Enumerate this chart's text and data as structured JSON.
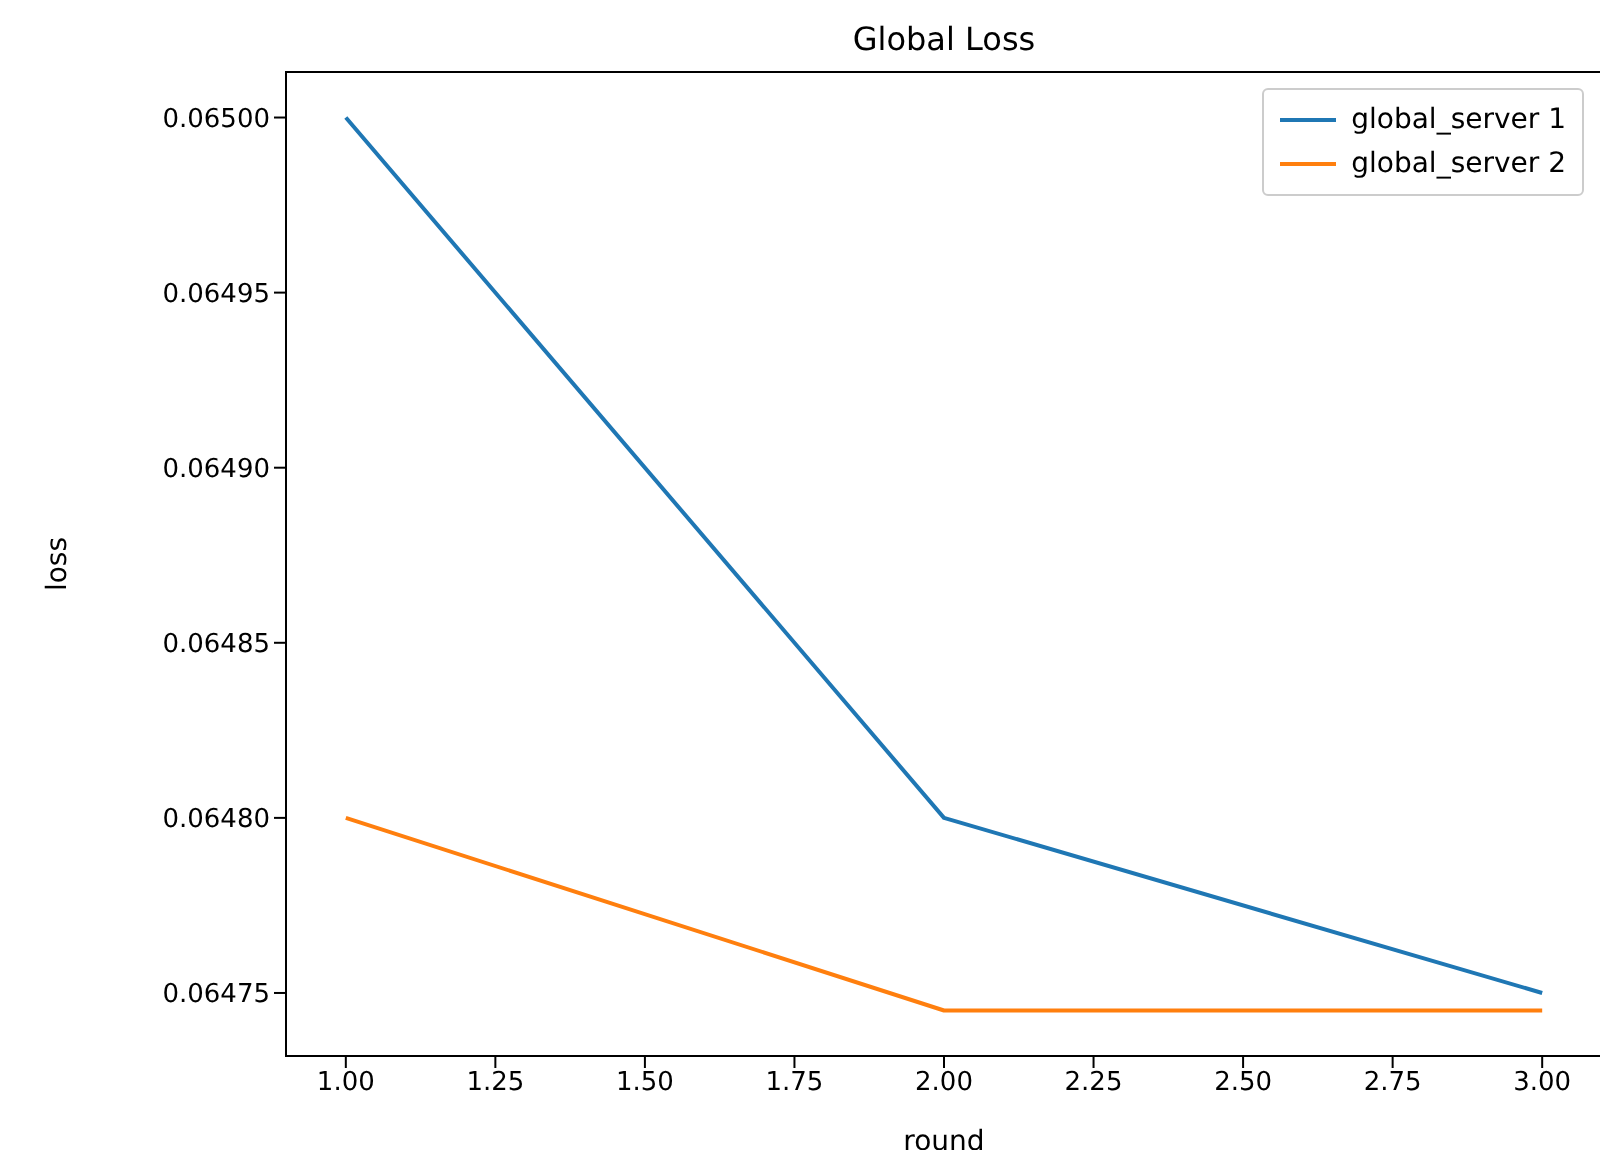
{
  "chart_data": {
    "type": "line",
    "title": "Global Loss",
    "xlabel": "round",
    "ylabel": "loss",
    "x": [
      1,
      2,
      3
    ],
    "series": [
      {
        "name": "global_server 1",
        "color": "#1f77b4",
        "values": [
          0.065,
          0.0648,
          0.06475
        ]
      },
      {
        "name": "global_server 2",
        "color": "#ff7f0e",
        "values": [
          0.0648,
          0.064745,
          0.064745
        ]
      }
    ],
    "xlim": [
      0.9,
      3.1
    ],
    "xticks": [
      {
        "value": 1,
        "label": "1.00"
      },
      {
        "value": 1.25,
        "label": "1.25"
      },
      {
        "value": 1.5,
        "label": "1.50"
      },
      {
        "value": 1.75,
        "label": "1.75"
      },
      {
        "value": 2,
        "label": "2.00"
      },
      {
        "value": 2.25,
        "label": "2.25"
      },
      {
        "value": 2.5,
        "label": "2.50"
      },
      {
        "value": 2.75,
        "label": "2.75"
      },
      {
        "value": 3,
        "label": "3.00"
      }
    ],
    "ylim": [
      0.064732,
      0.065013
    ],
    "yticks": [
      {
        "value": 0.06475,
        "label": "0.06475"
      },
      {
        "value": 0.0648,
        "label": "0.06480"
      },
      {
        "value": 0.06485,
        "label": "0.06485"
      },
      {
        "value": 0.0649,
        "label": "0.06490"
      },
      {
        "value": 0.06495,
        "label": "0.06495"
      },
      {
        "value": 0.065,
        "label": "0.06500"
      }
    ],
    "grid": false,
    "legend": "top right",
    "marker": "none",
    "line_style": "solid"
  }
}
